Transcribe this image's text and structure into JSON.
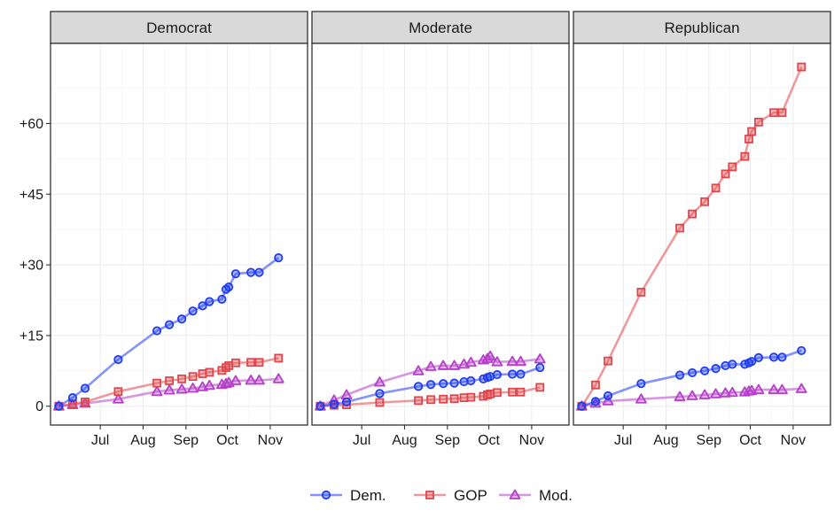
{
  "chart_data": {
    "type": "line",
    "y_ticks": [
      0,
      15,
      30,
      45,
      60
    ],
    "y_tick_labels": [
      "0",
      "+15",
      "+30",
      "+45",
      "+60"
    ],
    "ylim": [
      -4,
      77
    ],
    "x_ticks": [
      "Jul",
      "Aug",
      "Sep",
      "Oct",
      "Nov"
    ],
    "x_tick_days": [
      30,
      61,
      92,
      122,
      153
    ],
    "xlim": [
      -6,
      180
    ],
    "grid": true,
    "legend_position": "bottom",
    "legend": [
      {
        "name": "Dem.",
        "color": "#1f3cf5",
        "marker": "circle"
      },
      {
        "name": "GOP",
        "color": "#e0474c",
        "marker": "square"
      },
      {
        "name": "Mod.",
        "color": "#b53fc9",
        "marker": "triangle"
      }
    ],
    "panels": [
      {
        "title": "Democrat",
        "series": [
          {
            "name": "Dem.",
            "x": [
              0,
              10,
              19,
              43,
              71,
              80,
              89,
              97,
              104,
              109,
              118,
              121,
              123,
              128,
              139,
              145,
              159
            ],
            "y": [
              0,
              1.8,
              3.8,
              9.9,
              16.0,
              17.3,
              18.5,
              20.2,
              21.3,
              22.2,
              22.7,
              24.8,
              25.3,
              28.1,
              28.4,
              28.4,
              31.5
            ]
          },
          {
            "name": "GOP",
            "x": [
              0,
              10,
              19,
              43,
              71,
              80,
              89,
              97,
              104,
              109,
              118,
              121,
              123,
              128,
              139,
              145,
              159
            ],
            "y": [
              0,
              0.5,
              0.9,
              3.1,
              4.9,
              5.4,
              5.8,
              6.3,
              6.9,
              7.2,
              7.6,
              8.2,
              8.6,
              9.2,
              9.3,
              9.3,
              10.2
            ]
          },
          {
            "name": "Mod.",
            "x": [
              0,
              10,
              19,
              43,
              71,
              80,
              89,
              97,
              104,
              109,
              118,
              121,
              123,
              128,
              139,
              145,
              159
            ],
            "y": [
              0,
              0.3,
              0.6,
              1.5,
              3.1,
              3.4,
              3.6,
              3.8,
              4.1,
              4.4,
              4.6,
              4.8,
              5.0,
              5.4,
              5.5,
              5.5,
              5.8
            ]
          }
        ]
      },
      {
        "title": "Moderate",
        "series": [
          {
            "name": "Dem.",
            "x": [
              0,
              10,
              19,
              43,
              71,
              80,
              89,
              97,
              104,
              109,
              118,
              121,
              123,
              128,
              139,
              145,
              159
            ],
            "y": [
              0,
              0.4,
              0.9,
              2.7,
              4.2,
              4.6,
              4.8,
              4.9,
              5.2,
              5.4,
              5.8,
              6.1,
              6.3,
              6.7,
              6.8,
              6.8,
              8.2
            ]
          },
          {
            "name": "GOP",
            "x": [
              0,
              10,
              19,
              43,
              71,
              80,
              89,
              97,
              104,
              109,
              118,
              121,
              123,
              128,
              139,
              145,
              159
            ],
            "y": [
              0,
              0.2,
              0.3,
              0.8,
              1.2,
              1.4,
              1.5,
              1.6,
              1.8,
              1.9,
              2.1,
              2.4,
              2.6,
              2.9,
              3.0,
              3.0,
              4.0
            ]
          },
          {
            "name": "Mod.",
            "x": [
              0,
              10,
              19,
              43,
              71,
              80,
              89,
              97,
              104,
              109,
              118,
              121,
              123,
              128,
              139,
              145,
              159
            ],
            "y": [
              0,
              1.3,
              2.4,
              5.1,
              7.5,
              8.4,
              8.6,
              8.6,
              8.9,
              9.3,
              9.8,
              10.1,
              10.6,
              9.4,
              9.5,
              9.5,
              10.0
            ]
          }
        ]
      },
      {
        "title": "Republican",
        "series": [
          {
            "name": "Dem.",
            "x": [
              0,
              10,
              19,
              43,
              71,
              80,
              89,
              97,
              104,
              109,
              118,
              121,
              123,
              128,
              139,
              145,
              159
            ],
            "y": [
              0,
              1.0,
              2.2,
              4.8,
              6.6,
              7.1,
              7.5,
              8.0,
              8.6,
              8.9,
              8.9,
              9.2,
              9.5,
              10.3,
              10.4,
              10.4,
              11.8
            ]
          },
          {
            "name": "GOP",
            "x": [
              0,
              10,
              19,
              43,
              71,
              80,
              89,
              97,
              104,
              109,
              118,
              121,
              123,
              128,
              139,
              145,
              159
            ],
            "y": [
              0,
              4.5,
              9.6,
              24.2,
              37.8,
              40.8,
              43.4,
              46.3,
              49.3,
              50.8,
              53.0,
              56.7,
              58.3,
              60.3,
              62.3,
              62.3,
              72.0
            ]
          },
          {
            "name": "Mod.",
            "x": [
              0,
              10,
              19,
              43,
              71,
              80,
              89,
              97,
              104,
              109,
              118,
              121,
              123,
              128,
              139,
              145,
              159
            ],
            "y": [
              0,
              0.6,
              1.1,
              1.5,
              2.0,
              2.2,
              2.4,
              2.6,
              2.8,
              2.9,
              3.0,
              3.2,
              3.3,
              3.5,
              3.5,
              3.5,
              3.7
            ]
          }
        ]
      }
    ]
  }
}
